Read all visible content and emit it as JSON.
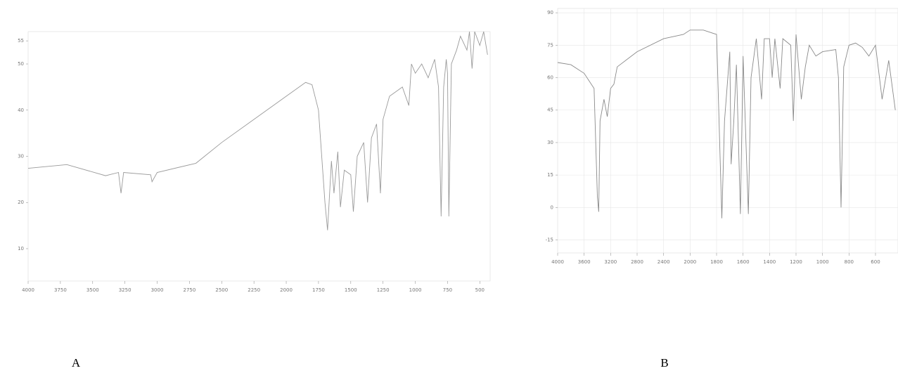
{
  "chart_data": [
    {
      "type": "line",
      "title": "A",
      "color": "#9a9a9a",
      "grid": false,
      "x": [
        4000,
        3700,
        3400,
        3300,
        3280,
        3260,
        3050,
        3040,
        3000,
        2700,
        2500,
        2250,
        2000,
        1850,
        1800,
        1750,
        1700,
        1680,
        1650,
        1630,
        1600,
        1580,
        1550,
        1500,
        1480,
        1450,
        1400,
        1370,
        1340,
        1300,
        1270,
        1250,
        1200,
        1150,
        1100,
        1050,
        1030,
        1000,
        950,
        900,
        850,
        820,
        800,
        780,
        760,
        750,
        740,
        720,
        680,
        650,
        600,
        580,
        560,
        540,
        500,
        470,
        440
      ],
      "values": [
        27.4,
        28.2,
        25.8,
        26.5,
        22,
        26.5,
        26,
        24.5,
        26.5,
        28.5,
        33,
        38,
        43,
        46,
        45.5,
        40,
        20,
        14,
        29,
        22,
        31,
        19,
        27,
        26,
        18,
        30,
        33,
        20,
        34,
        37,
        22,
        38,
        43,
        44,
        45,
        41,
        50,
        48,
        50,
        47,
        51,
        45,
        17,
        45,
        51,
        48,
        17,
        50,
        53,
        56,
        53,
        57,
        49,
        57,
        54,
        57,
        52
      ],
      "xlim": [
        4000,
        420
      ],
      "xticks": [
        4000,
        3750,
        3500,
        3250,
        3000,
        2750,
        2500,
        2250,
        2000,
        1750,
        1500,
        1250,
        1000,
        750,
        500
      ],
      "ylim": [
        3,
        57
      ],
      "yticks": [
        10,
        20,
        30,
        40,
        50,
        55
      ]
    },
    {
      "type": "line",
      "title": "B",
      "color": "#8a8a8a",
      "grid": true,
      "x": [
        4000,
        3800,
        3600,
        3450,
        3400,
        3380,
        3360,
        3300,
        3250,
        3200,
        3150,
        3100,
        2800,
        2400,
        2100,
        2000,
        1900,
        1800,
        1760,
        1740,
        1700,
        1690,
        1670,
        1650,
        1620,
        1600,
        1560,
        1540,
        1500,
        1460,
        1440,
        1400,
        1380,
        1360,
        1320,
        1300,
        1240,
        1220,
        1200,
        1160,
        1130,
        1100,
        1050,
        1000,
        900,
        880,
        860,
        840,
        800,
        750,
        700,
        650,
        600,
        550,
        500,
        450
      ],
      "values": [
        67,
        66,
        62,
        55,
        5,
        -2,
        40,
        50,
        42,
        55,
        57,
        65,
        72,
        78,
        80,
        82,
        82,
        80,
        -5,
        40,
        72,
        20,
        40,
        66,
        -3,
        70,
        -3,
        60,
        78,
        50,
        78,
        78,
        60,
        78,
        55,
        78,
        75,
        40,
        80,
        50,
        65,
        75,
        70,
        72,
        73,
        60,
        0,
        65,
        75,
        76,
        74,
        70,
        75,
        50,
        68,
        45
      ],
      "xlim": [
        4000,
        430
      ],
      "xticks": [
        4000,
        3600,
        3200,
        2800,
        2400,
        2000,
        1800,
        1600,
        1400,
        1200,
        1000,
        800,
        600
      ],
      "ylim": [
        -21,
        92
      ],
      "yticks": [
        -15,
        0,
        15,
        30,
        45,
        60,
        75,
        90
      ]
    }
  ]
}
